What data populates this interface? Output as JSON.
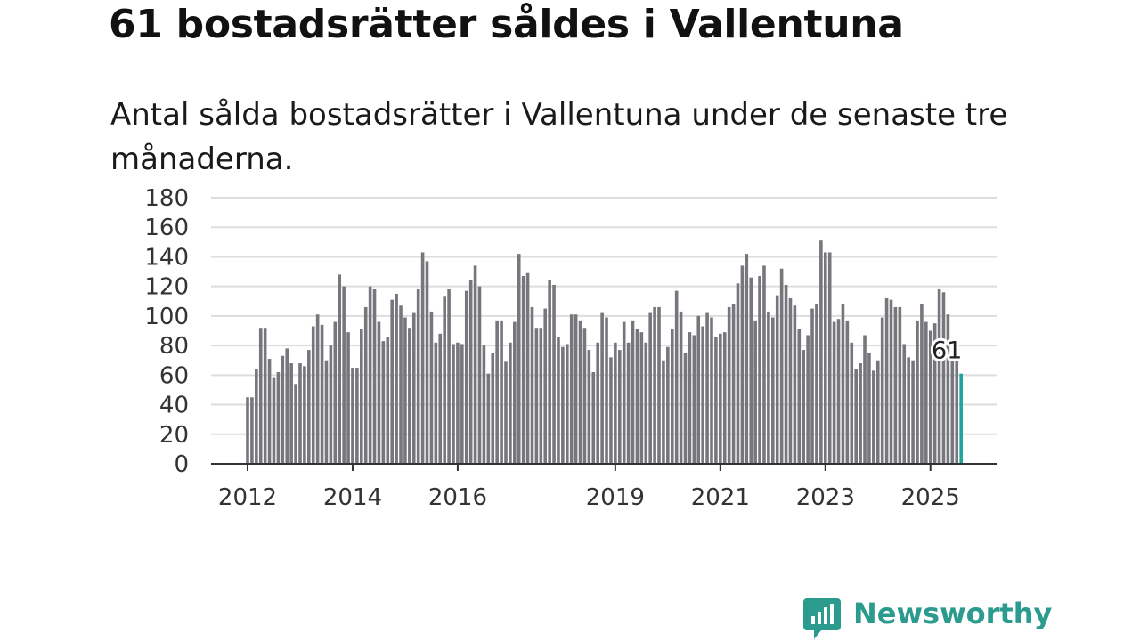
{
  "title": "61 bostadsrätter såldes i Vallentuna",
  "subtitle": "Antal sålda bostadsrätter i Vallentuna under de senaste tre månaderna.",
  "brand": {
    "name": "Newsworthy",
    "color": "#2b9b8e",
    "icon": "newsworthy-logo-icon"
  },
  "colors": {
    "bar": "#76767c",
    "highlight": "#1fa39a",
    "grid": "#dddddd",
    "axis": "#333333"
  },
  "chart_data": {
    "type": "bar",
    "start": "2012-01",
    "frequency": "monthly",
    "ylim": [
      0,
      180
    ],
    "yticks": [
      0,
      20,
      40,
      60,
      80,
      100,
      120,
      140,
      160,
      180
    ],
    "xticks": [
      "2012",
      "2014",
      "2016",
      "2019",
      "2021",
      "2023",
      "2025"
    ],
    "grid": true,
    "highlight_label": "61",
    "values": [
      45,
      45,
      64,
      92,
      92,
      71,
      58,
      62,
      73,
      78,
      68,
      54,
      68,
      66,
      77,
      93,
      101,
      94,
      70,
      80,
      96,
      128,
      120,
      89,
      65,
      65,
      91,
      106,
      120,
      118,
      96,
      83,
      86,
      111,
      115,
      107,
      99,
      92,
      102,
      118,
      143,
      137,
      103,
      82,
      88,
      113,
      118,
      81,
      82,
      81,
      117,
      124,
      134,
      120,
      80,
      61,
      75,
      97,
      97,
      69,
      82,
      96,
      142,
      127,
      129,
      106,
      92,
      92,
      105,
      124,
      121,
      86,
      79,
      81,
      101,
      101,
      97,
      92,
      77,
      62,
      82,
      102,
      99,
      72,
      82,
      77,
      96,
      82,
      97,
      91,
      89,
      82,
      102,
      106,
      106,
      70,
      79,
      91,
      117,
      103,
      75,
      89,
      87,
      100,
      93,
      102,
      99,
      86,
      88,
      89,
      106,
      108,
      122,
      134,
      142,
      126,
      97,
      127,
      134,
      103,
      99,
      114,
      132,
      121,
      112,
      107,
      91,
      77,
      87,
      105,
      108,
      151,
      143,
      143,
      96,
      98,
      108,
      97,
      82,
      64,
      68,
      87,
      75,
      63,
      70,
      99,
      112,
      111,
      106,
      106,
      81,
      72,
      70,
      97,
      108,
      96,
      90,
      95,
      118,
      116,
      101,
      70,
      70,
      61
    ]
  }
}
